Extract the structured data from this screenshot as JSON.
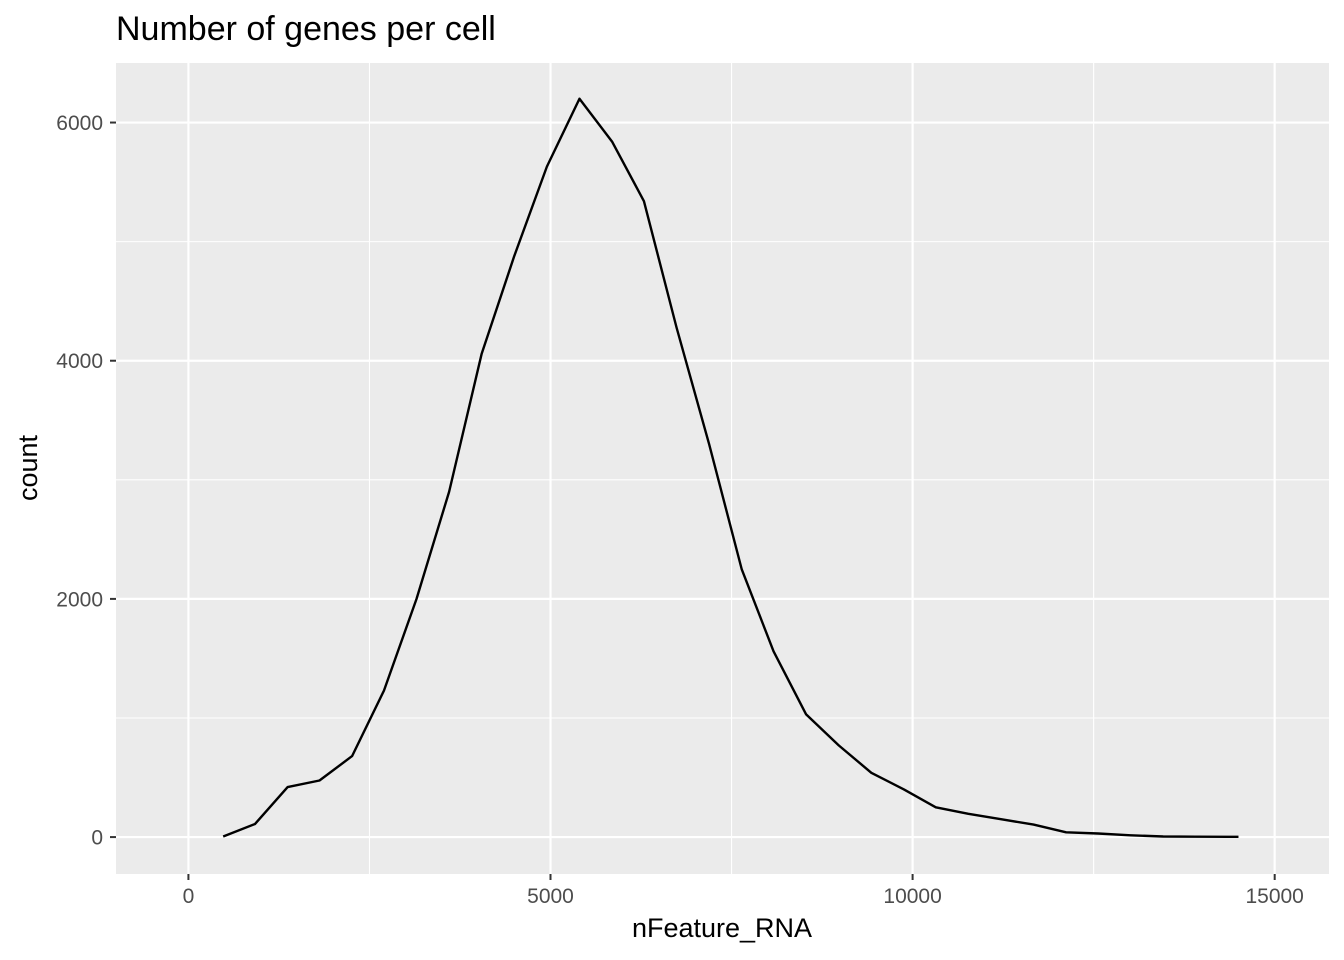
{
  "chart_data": {
    "type": "line",
    "title": "Number of genes per cell",
    "xlabel": "nFeature_RNA",
    "ylabel": "count",
    "xlim": [
      -1000,
      15750
    ],
    "ylim": [
      -310,
      6500
    ],
    "xticks": [
      0,
      5000,
      10000,
      15000
    ],
    "yticks": [
      0,
      2000,
      4000,
      6000
    ],
    "xtick_labels": [
      "0",
      "5000",
      "10000",
      "15000"
    ],
    "ytick_labels": [
      "0",
      "2000",
      "4000",
      "6000"
    ],
    "grid": true,
    "colors": {
      "panel": "#EBEBEB",
      "grid": "#FFFFFF",
      "line": "#000000",
      "tick_text": "#4D4D4D"
    },
    "series": [
      {
        "x": [
          480,
          920,
          1370,
          1810,
          2260,
          2700,
          3150,
          3600,
          4050,
          4500,
          4950,
          5400,
          5850,
          6290,
          6740,
          7190,
          7640,
          8080,
          8530,
          8980,
          9430,
          9880,
          10320,
          10770,
          11220,
          11670,
          12120,
          12560,
          13010,
          13460,
          13910,
          14360,
          14500
        ],
        "values": [
          5,
          110,
          420,
          475,
          680,
          1230,
          2000,
          2900,
          4060,
          4880,
          5630,
          6200,
          5840,
          5340,
          4280,
          3300,
          2250,
          1560,
          1030,
          770,
          540,
          400,
          250,
          195,
          150,
          105,
          40,
          30,
          15,
          5,
          3,
          2,
          2
        ]
      }
    ]
  }
}
